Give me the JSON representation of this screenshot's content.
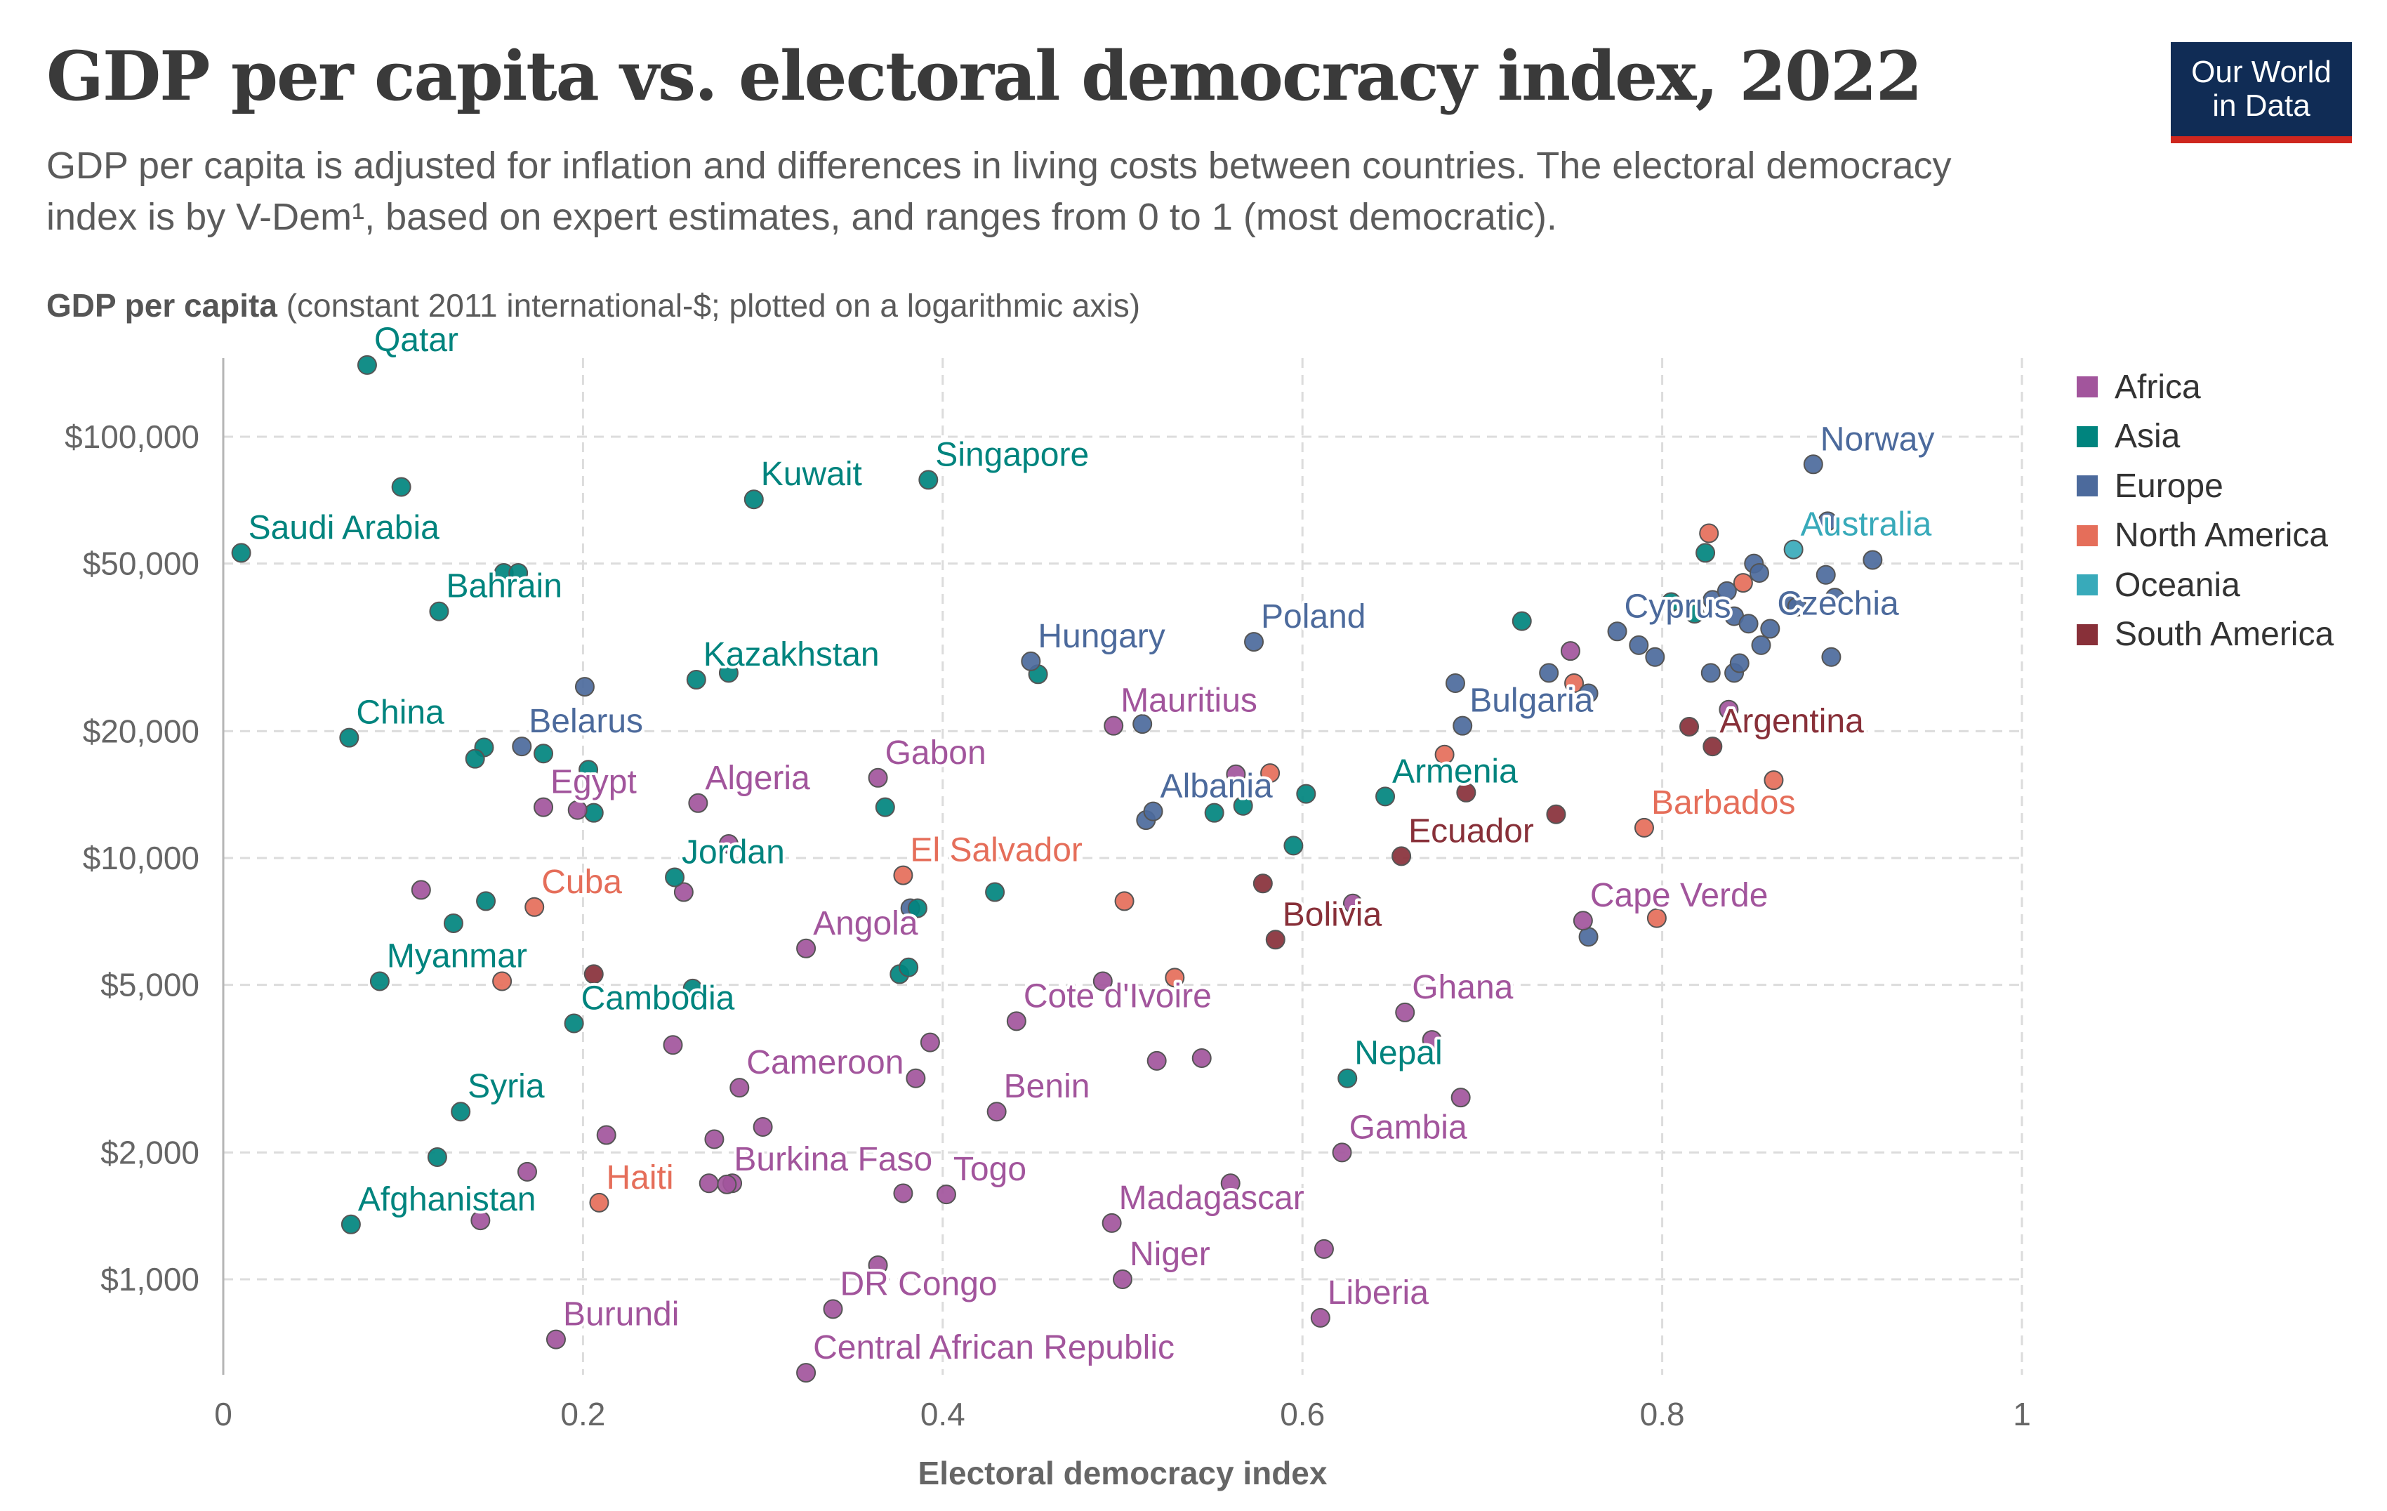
{
  "title": "GDP per capita vs. electoral democracy index, 2022",
  "subtitle": "GDP per capita is adjusted for inflation and differences in living costs between countries. The electoral democracy index is by V-Dem¹, based on expert estimates, and ranges from 0 to 1 (most democratic).",
  "y_axis_title_bold": "GDP per capita",
  "y_axis_title_rest": " (constant 2011 international-$; plotted on a logarithmic axis)",
  "logo": {
    "line1": "Our World",
    "line2": "in Data"
  },
  "colors": {
    "Africa": "#a2559c",
    "Asia": "#00847e",
    "Europe": "#4c6a9c",
    "North America": "#e56e5a",
    "Oceania": "#38aaba",
    "South America": "#883039"
  },
  "legend": [
    "Africa",
    "Asia",
    "Europe",
    "North America",
    "Oceania",
    "South America"
  ],
  "chart_data": {
    "type": "scatter",
    "title": "GDP per capita vs. electoral democracy index, 2022",
    "xlabel": "Electoral democracy index",
    "ylabel": "GDP per capita",
    "x_scale": "linear",
    "y_scale": "log",
    "xlim": [
      0,
      1
    ],
    "ylim": [
      700,
      140000
    ],
    "x_ticks": [
      0,
      0.2,
      0.4,
      0.6,
      0.8,
      1
    ],
    "x_tick_labels": [
      "0",
      "0.2",
      "0.4",
      "0.6",
      "0.8",
      "1"
    ],
    "y_ticks": [
      1000,
      2000,
      5000,
      10000,
      20000,
      50000,
      100000
    ],
    "y_tick_labels": [
      "$1,000",
      "$2,000",
      "$5,000",
      "$10,000",
      "$20,000",
      "$50,000",
      "$100,000"
    ],
    "grid": true,
    "legend_position": "right",
    "points": [
      {
        "label": "Qatar",
        "region": "Asia",
        "x": 0.08,
        "y": 148000
      },
      {
        "label": "Kuwait",
        "region": "Asia",
        "x": 0.295,
        "y": 71000
      },
      {
        "label": "Singapore",
        "region": "Asia",
        "x": 0.392,
        "y": 79000
      },
      {
        "label": "Saudi Arabia",
        "region": "Asia",
        "x": 0.01,
        "y": 53000
      },
      {
        "label": "Bahrain",
        "region": "Asia",
        "x": 0.12,
        "y": 38500
      },
      {
        "label": "Kazakhstan",
        "region": "Asia",
        "x": 0.263,
        "y": 26500
      },
      {
        "label": "China",
        "region": "Asia",
        "x": 0.07,
        "y": 19300
      },
      {
        "label": "Belarus",
        "region": "Europe",
        "x": 0.166,
        "y": 18400
      },
      {
        "label": "Egypt",
        "region": "Africa",
        "x": 0.178,
        "y": 13200
      },
      {
        "label": "Algeria",
        "region": "Africa",
        "x": 0.264,
        "y": 13500
      },
      {
        "label": "Gabon",
        "region": "Africa",
        "x": 0.364,
        "y": 15500
      },
      {
        "label": "Hungary",
        "region": "Europe",
        "x": 0.449,
        "y": 29300
      },
      {
        "label": "Poland",
        "region": "Europe",
        "x": 0.573,
        "y": 32600
      },
      {
        "label": "Mauritius",
        "region": "Africa",
        "x": 0.495,
        "y": 20600
      },
      {
        "label": "Albania",
        "region": "Europe",
        "x": 0.517,
        "y": 12900
      },
      {
        "label": "Jordan",
        "region": "Asia",
        "x": 0.251,
        "y": 9000
      },
      {
        "label": "Cuba",
        "region": "North America",
        "x": 0.173,
        "y": 7650
      },
      {
        "label": "El Salvador",
        "region": "North America",
        "x": 0.378,
        "y": 9100
      },
      {
        "label": "Angola",
        "region": "Africa",
        "x": 0.324,
        "y": 6100
      },
      {
        "label": "Myanmar",
        "region": "Asia",
        "x": 0.087,
        "y": 5100
      },
      {
        "label": "Cambodia",
        "region": "Asia",
        "x": 0.195,
        "y": 4050
      },
      {
        "label": "Cote d'Ivoire",
        "region": "Africa",
        "x": 0.441,
        "y": 4100
      },
      {
        "label": "Cameroon",
        "region": "Africa",
        "x": 0.287,
        "y": 2850
      },
      {
        "label": "Benin",
        "region": "Africa",
        "x": 0.43,
        "y": 2500
      },
      {
        "label": "Syria",
        "region": "Asia",
        "x": 0.132,
        "y": 2500
      },
      {
        "label": "Burkina Faso",
        "region": "Africa",
        "x": 0.28,
        "y": 1680
      },
      {
        "label": "Haiti",
        "region": "North America",
        "x": 0.209,
        "y": 1520
      },
      {
        "label": "Togo",
        "region": "Africa",
        "x": 0.402,
        "y": 1590
      },
      {
        "label": "Afghanistan",
        "region": "Asia",
        "x": 0.071,
        "y": 1350
      },
      {
        "label": "Madagascar",
        "region": "Africa",
        "x": 0.494,
        "y": 1360
      },
      {
        "label": "Niger",
        "region": "Africa",
        "x": 0.5,
        "y": 1000
      },
      {
        "label": "DR Congo",
        "region": "Africa",
        "x": 0.339,
        "y": 850
      },
      {
        "label": "Burundi",
        "region": "Africa",
        "x": 0.185,
        "y": 720
      },
      {
        "label": "Central African Republic",
        "region": "Africa",
        "x": 0.324,
        "y": 600
      },
      {
        "label": "Liberia",
        "region": "Africa",
        "x": 0.61,
        "y": 810
      },
      {
        "label": "Gambia",
        "region": "Africa",
        "x": 0.622,
        "y": 2000
      },
      {
        "label": "Nepal",
        "region": "Asia",
        "x": 0.625,
        "y": 3000
      },
      {
        "label": "Ghana",
        "region": "Africa",
        "x": 0.657,
        "y": 4300
      },
      {
        "label": "Bolivia",
        "region": "South America",
        "x": 0.585,
        "y": 6400
      },
      {
        "label": "Ecuador",
        "region": "South America",
        "x": 0.655,
        "y": 10100
      },
      {
        "label": "Armenia",
        "region": "Asia",
        "x": 0.646,
        "y": 14000
      },
      {
        "label": "Bulgaria",
        "region": "Europe",
        "x": 0.689,
        "y": 20600
      },
      {
        "label": "Argentina",
        "region": "South America",
        "x": 0.828,
        "y": 18400
      },
      {
        "label": "Barbados",
        "region": "North America",
        "x": 0.79,
        "y": 11800
      },
      {
        "label": "Cape Verde",
        "region": "Africa",
        "x": 0.756,
        "y": 7100
      },
      {
        "label": "Cyprus",
        "region": "Europe",
        "x": 0.775,
        "y": 34500
      },
      {
        "label": "Czechia",
        "region": "Europe",
        "x": 0.86,
        "y": 35000
      },
      {
        "label": "Australia",
        "region": "Oceania",
        "x": 0.873,
        "y": 54000
      },
      {
        "label": "Norway",
        "region": "Europe",
        "x": 0.884,
        "y": 86000
      },
      {
        "label": "",
        "region": "Asia",
        "x": 0.099,
        "y": 76000
      },
      {
        "label": "",
        "region": "Asia",
        "x": 0.156,
        "y": 47500
      },
      {
        "label": "",
        "region": "Asia",
        "x": 0.164,
        "y": 47500
      },
      {
        "label": "",
        "region": "Asia",
        "x": 0.281,
        "y": 27500
      },
      {
        "label": "",
        "region": "Europe",
        "x": 0.201,
        "y": 25500
      },
      {
        "label": "",
        "region": "Asia",
        "x": 0.145,
        "y": 18300
      },
      {
        "label": "",
        "region": "Asia",
        "x": 0.14,
        "y": 17200
      },
      {
        "label": "",
        "region": "Asia",
        "x": 0.178,
        "y": 17700
      },
      {
        "label": "",
        "region": "Asia",
        "x": 0.203,
        "y": 16200
      },
      {
        "label": "",
        "region": "Asia",
        "x": 0.206,
        "y": 12800
      },
      {
        "label": "",
        "region": "Africa",
        "x": 0.197,
        "y": 13000
      },
      {
        "label": "",
        "region": "Africa",
        "x": 0.281,
        "y": 10800
      },
      {
        "label": "",
        "region": "Asia",
        "x": 0.368,
        "y": 13200
      },
      {
        "label": "",
        "region": "Asia",
        "x": 0.453,
        "y": 27300
      },
      {
        "label": "",
        "region": "Africa",
        "x": 0.11,
        "y": 8400
      },
      {
        "label": "",
        "region": "Asia",
        "x": 0.146,
        "y": 7900
      },
      {
        "label": "",
        "region": "Asia",
        "x": 0.128,
        "y": 7000
      },
      {
        "label": "",
        "region": "Africa",
        "x": 0.256,
        "y": 8300
      },
      {
        "label": "",
        "region": "Europe",
        "x": 0.382,
        "y": 7600
      },
      {
        "label": "",
        "region": "Asia",
        "x": 0.386,
        "y": 7600
      },
      {
        "label": "",
        "region": "Asia",
        "x": 0.429,
        "y": 8300
      },
      {
        "label": "",
        "region": "North America",
        "x": 0.155,
        "y": 5100
      },
      {
        "label": "",
        "region": "South America",
        "x": 0.206,
        "y": 5300
      },
      {
        "label": "",
        "region": "Asia",
        "x": 0.261,
        "y": 4900
      },
      {
        "label": "",
        "region": "Asia",
        "x": 0.376,
        "y": 5300
      },
      {
        "label": "",
        "region": "Asia",
        "x": 0.381,
        "y": 5500
      },
      {
        "label": "",
        "region": "Africa",
        "x": 0.489,
        "y": 5100
      },
      {
        "label": "",
        "region": "North America",
        "x": 0.529,
        "y": 5200
      },
      {
        "label": "",
        "region": "Africa",
        "x": 0.25,
        "y": 3600
      },
      {
        "label": "",
        "region": "Africa",
        "x": 0.393,
        "y": 3650
      },
      {
        "label": "",
        "region": "Africa",
        "x": 0.385,
        "y": 3000
      },
      {
        "label": "",
        "region": "Africa",
        "x": 0.519,
        "y": 3300
      },
      {
        "label": "",
        "region": "Africa",
        "x": 0.544,
        "y": 3350
      },
      {
        "label": "",
        "region": "Africa",
        "x": 0.213,
        "y": 2200
      },
      {
        "label": "",
        "region": "Africa",
        "x": 0.3,
        "y": 2300
      },
      {
        "label": "",
        "region": "Africa",
        "x": 0.273,
        "y": 2150
      },
      {
        "label": "",
        "region": "Asia",
        "x": 0.119,
        "y": 1950
      },
      {
        "label": "",
        "region": "Africa",
        "x": 0.169,
        "y": 1800
      },
      {
        "label": "",
        "region": "Africa",
        "x": 0.27,
        "y": 1690
      },
      {
        "label": "",
        "region": "Africa",
        "x": 0.283,
        "y": 1690
      },
      {
        "label": "",
        "region": "Africa",
        "x": 0.143,
        "y": 1380
      },
      {
        "label": "",
        "region": "Africa",
        "x": 0.378,
        "y": 1600
      },
      {
        "label": "",
        "region": "Africa",
        "x": 0.56,
        "y": 1690
      },
      {
        "label": "",
        "region": "Africa",
        "x": 0.612,
        "y": 1180
      },
      {
        "label": "",
        "region": "Africa",
        "x": 0.364,
        "y": 1080
      },
      {
        "label": "",
        "region": "Africa",
        "x": 0.688,
        "y": 2700
      },
      {
        "label": "",
        "region": "Africa",
        "x": 0.672,
        "y": 3700
      },
      {
        "label": "",
        "region": "Africa",
        "x": 0.628,
        "y": 7800
      },
      {
        "label": "",
        "region": "South America",
        "x": 0.578,
        "y": 8700
      },
      {
        "label": "",
        "region": "North America",
        "x": 0.501,
        "y": 7900
      },
      {
        "label": "",
        "region": "Europe",
        "x": 0.513,
        "y": 12300
      },
      {
        "label": "",
        "region": "Asia",
        "x": 0.551,
        "y": 12800
      },
      {
        "label": "",
        "region": "Asia",
        "x": 0.567,
        "y": 13300
      },
      {
        "label": "",
        "region": "Asia",
        "x": 0.595,
        "y": 10700
      },
      {
        "label": "",
        "region": "Asia",
        "x": 0.602,
        "y": 14200
      },
      {
        "label": "",
        "region": "Africa",
        "x": 0.563,
        "y": 15800
      },
      {
        "label": "",
        "region": "North America",
        "x": 0.582,
        "y": 15900
      },
      {
        "label": "",
        "region": "Europe",
        "x": 0.511,
        "y": 20800
      },
      {
        "label": "",
        "region": "South America",
        "x": 0.691,
        "y": 14300
      },
      {
        "label": "",
        "region": "South America",
        "x": 0.741,
        "y": 12700
      },
      {
        "label": "",
        "region": "North America",
        "x": 0.679,
        "y": 17600
      },
      {
        "label": "",
        "region": "Europe",
        "x": 0.685,
        "y": 26000
      },
      {
        "label": "",
        "region": "Asia",
        "x": 0.722,
        "y": 36500
      },
      {
        "label": "",
        "region": "Europe",
        "x": 0.737,
        "y": 27500
      },
      {
        "label": "",
        "region": "Africa",
        "x": 0.749,
        "y": 31000
      },
      {
        "label": "",
        "region": "North America",
        "x": 0.751,
        "y": 26000
      },
      {
        "label": "",
        "region": "Europe",
        "x": 0.759,
        "y": 24600
      },
      {
        "label": "",
        "region": "Europe",
        "x": 0.759,
        "y": 6500
      },
      {
        "label": "",
        "region": "North America",
        "x": 0.797,
        "y": 7200
      },
      {
        "label": "",
        "region": "Europe",
        "x": 0.787,
        "y": 32000
      },
      {
        "label": "",
        "region": "Europe",
        "x": 0.796,
        "y": 30000
      },
      {
        "label": "",
        "region": "Asia",
        "x": 0.805,
        "y": 40500
      },
      {
        "label": "",
        "region": "Asia",
        "x": 0.818,
        "y": 38000
      },
      {
        "label": "",
        "region": "Asia",
        "x": 0.824,
        "y": 53000
      },
      {
        "label": "",
        "region": "North America",
        "x": 0.826,
        "y": 59000
      },
      {
        "label": "",
        "region": "Europe",
        "x": 0.828,
        "y": 41000
      },
      {
        "label": "",
        "region": "Europe",
        "x": 0.836,
        "y": 43000
      },
      {
        "label": "",
        "region": "North America",
        "x": 0.845,
        "y": 45000
      },
      {
        "label": "",
        "region": "Europe",
        "x": 0.851,
        "y": 50000
      },
      {
        "label": "",
        "region": "Europe",
        "x": 0.854,
        "y": 47500
      },
      {
        "label": "",
        "region": "Europe",
        "x": 0.84,
        "y": 37500
      },
      {
        "label": "",
        "region": "Europe",
        "x": 0.848,
        "y": 36000
      },
      {
        "label": "",
        "region": "Europe",
        "x": 0.827,
        "y": 27500
      },
      {
        "label": "",
        "region": "Europe",
        "x": 0.84,
        "y": 27500
      },
      {
        "label": "",
        "region": "Europe",
        "x": 0.843,
        "y": 29000
      },
      {
        "label": "",
        "region": "Europe",
        "x": 0.855,
        "y": 32000
      },
      {
        "label": "",
        "region": "Africa",
        "x": 0.837,
        "y": 22500
      },
      {
        "label": "",
        "region": "South America",
        "x": 0.815,
        "y": 20500
      },
      {
        "label": "",
        "region": "Europe",
        "x": 0.869,
        "y": 40500
      },
      {
        "label": "",
        "region": "Europe",
        "x": 0.875,
        "y": 39500
      },
      {
        "label": "",
        "region": "Europe",
        "x": 0.891,
        "y": 47000
      },
      {
        "label": "",
        "region": "Europe",
        "x": 0.892,
        "y": 63000
      },
      {
        "label": "",
        "region": "Europe",
        "x": 0.896,
        "y": 41500
      },
      {
        "label": "",
        "region": "Europe",
        "x": 0.894,
        "y": 30000
      },
      {
        "label": "",
        "region": "Europe",
        "x": 0.917,
        "y": 51000
      },
      {
        "label": "",
        "region": "North America",
        "x": 0.862,
        "y": 15300
      }
    ]
  }
}
